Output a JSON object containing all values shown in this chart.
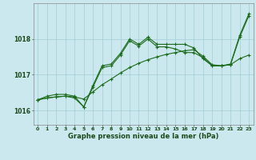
{
  "xlabel": "Graphe pression niveau de la mer (hPa)",
  "bg_color": "#cce8ef",
  "grid_color": "#a0cdd6",
  "line_color": "#1a6b1a",
  "xlim": [
    -0.5,
    23.5
  ],
  "ylim": [
    1015.6,
    1019.0
  ],
  "yticks": [
    1016,
    1017,
    1018
  ],
  "xticks": [
    0,
    1,
    2,
    3,
    4,
    5,
    6,
    7,
    8,
    9,
    10,
    11,
    12,
    13,
    14,
    15,
    16,
    17,
    18,
    19,
    20,
    21,
    22,
    23
  ],
  "series1_x": [
    0,
    1,
    2,
    3,
    4,
    5,
    6,
    7,
    8,
    9,
    10,
    11,
    12,
    13,
    14,
    15,
    16,
    17,
    18,
    19,
    20,
    21,
    22,
    23
  ],
  "series1_y": [
    1016.3,
    1016.4,
    1016.45,
    1016.45,
    1016.4,
    1016.1,
    1016.7,
    1017.25,
    1017.3,
    1017.6,
    1018.0,
    1017.85,
    1018.05,
    1017.85,
    1017.85,
    1017.85,
    1017.85,
    1017.75,
    1017.45,
    1017.25,
    1017.25,
    1017.3,
    1018.1,
    1018.7
  ],
  "series2_x": [
    0,
    1,
    2,
    3,
    4,
    5,
    6,
    7,
    8,
    9,
    10,
    11,
    12,
    13,
    14,
    15,
    16,
    17,
    18,
    19,
    20,
    21,
    22,
    23
  ],
  "series2_y": [
    1016.3,
    1016.35,
    1016.38,
    1016.4,
    1016.38,
    1016.32,
    1016.52,
    1016.72,
    1016.88,
    1017.05,
    1017.2,
    1017.32,
    1017.42,
    1017.5,
    1017.57,
    1017.62,
    1017.67,
    1017.7,
    1017.52,
    1017.28,
    1017.25,
    1017.28,
    1017.45,
    1017.55
  ],
  "series3_x": [
    0,
    1,
    2,
    3,
    4,
    5,
    6,
    7,
    8,
    9,
    10,
    11,
    12,
    13,
    14,
    15,
    16,
    17,
    18,
    19,
    20,
    21,
    22,
    23
  ],
  "series3_y": [
    1016.3,
    1016.35,
    1016.38,
    1016.4,
    1016.35,
    1016.1,
    1016.65,
    1017.2,
    1017.25,
    1017.55,
    1017.95,
    1017.8,
    1018.0,
    1017.78,
    1017.78,
    1017.72,
    1017.62,
    1017.62,
    1017.48,
    1017.25,
    1017.25,
    1017.28,
    1018.05,
    1018.65
  ]
}
